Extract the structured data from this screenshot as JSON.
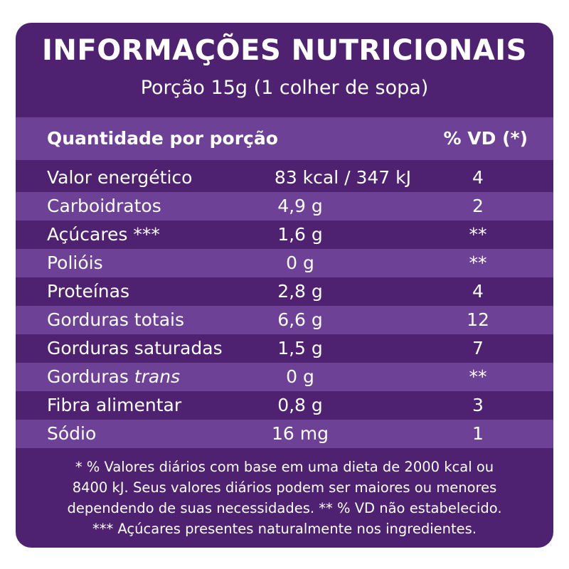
{
  "label": {
    "title": "INFORMAÇÕES NUTRICIONAIS",
    "serving": "Porção 15g (1 colher de sopa)",
    "header_left": "Quantidade por porção",
    "header_right": "% VD (*)"
  },
  "rows": [
    {
      "name": "Valor energético",
      "name_italic": "",
      "amount": "83 kcal / 347 kJ",
      "vd": "4"
    },
    {
      "name": "Carboidratos",
      "name_italic": "",
      "amount": "4,9 g",
      "vd": "2"
    },
    {
      "name": "Açúcares ***",
      "name_italic": "",
      "amount": "1,6 g",
      "vd": "**"
    },
    {
      "name": "Polióis",
      "name_italic": "",
      "amount": "0 g",
      "vd": "**"
    },
    {
      "name": "Proteínas",
      "name_italic": "",
      "amount": "2,8 g",
      "vd": "4"
    },
    {
      "name": "Gorduras totais",
      "name_italic": "",
      "amount": "6,6 g",
      "vd": "12"
    },
    {
      "name": "Gorduras saturadas",
      "name_italic": "",
      "amount": "1,5 g",
      "vd": "7"
    },
    {
      "name": "Gorduras ",
      "name_italic": "trans",
      "amount": "0 g",
      "vd": "**"
    },
    {
      "name": "Fibra alimentar",
      "name_italic": "",
      "amount": "0,8 g",
      "vd": "3"
    },
    {
      "name": "Sódio",
      "name_italic": "",
      "amount": "16 mg",
      "vd": "1"
    }
  ],
  "footnote": [
    "* % Valores diários com base em uma dieta de 2000 kcal ou",
    "8400 kJ. Seus valores diários podem ser maiores ou menores",
    "dependendo de suas necessidades. ** % VD não estabelecido.",
    "*** Açúcares presentes naturalmente nos ingredientes."
  ],
  "colors": {
    "dark_purple": "#4e2270",
    "light_purple": "#6c4196",
    "text": "#ffffff"
  }
}
